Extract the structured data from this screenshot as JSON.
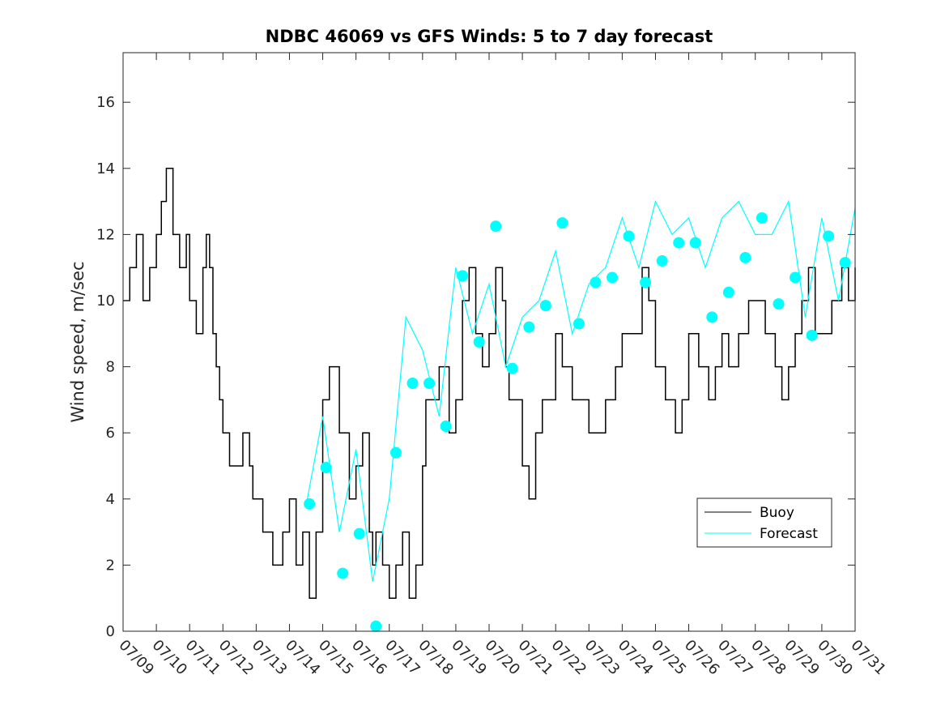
{
  "chart_data": {
    "type": "line",
    "title": "NDBC 46069 vs GFS Winds: 5 to 7 day forecast",
    "xlabel": "",
    "ylabel": "Wind speed, m/sec",
    "xlim": [
      0,
      22
    ],
    "ylim": [
      0,
      17.5
    ],
    "x_tick_labels": [
      "07/09",
      "07/10",
      "07/11",
      "07/12",
      "07/13",
      "07/14",
      "07/15",
      "07/16",
      "07/17",
      "07/18",
      "07/19",
      "07/20",
      "07/21",
      "07/22",
      "07/23",
      "07/24",
      "07/25",
      "07/26",
      "07/27",
      "07/28",
      "07/29",
      "07/30",
      "07/31"
    ],
    "y_ticks": [
      0,
      2,
      4,
      6,
      8,
      10,
      12,
      14,
      16
    ],
    "grid": false,
    "legend": {
      "position": "bottom-right",
      "entries": [
        "Buoy",
        "Forecast"
      ]
    },
    "colors": {
      "buoy": "#000000",
      "forecast": "#00ffff"
    },
    "series": [
      {
        "name": "Buoy",
        "x": [
          0,
          0.2,
          0.4,
          0.6,
          0.8,
          1.0,
          1.15,
          1.3,
          1.5,
          1.7,
          1.9,
          2.0,
          2.2,
          2.4,
          2.5,
          2.6,
          2.7,
          2.8,
          2.9,
          3.0,
          3.2,
          3.4,
          3.6,
          3.8,
          3.9,
          4.0,
          4.2,
          4.5,
          4.8,
          5.0,
          5.2,
          5.4,
          5.6,
          5.8,
          6.0,
          6.2,
          6.5,
          6.8,
          7.0,
          7.2,
          7.4,
          7.5,
          7.6,
          7.8,
          8.0,
          8.2,
          8.4,
          8.6,
          8.8,
          9.0,
          9.1,
          9.3,
          9.5,
          9.8,
          10.0,
          10.2,
          10.4,
          10.6,
          10.8,
          11.0,
          11.2,
          11.4,
          11.5,
          11.6,
          11.8,
          12.0,
          12.2,
          12.4,
          12.6,
          12.8,
          13.0,
          13.2,
          13.5,
          13.8,
          14.0,
          14.2,
          14.5,
          14.8,
          15.0,
          15.3,
          15.6,
          15.8,
          16.0,
          16.3,
          16.6,
          16.8,
          17.0,
          17.3,
          17.6,
          17.8,
          18.0,
          18.2,
          18.5,
          18.8,
          19.0,
          19.3,
          19.6,
          19.8,
          20.0,
          20.2,
          20.4,
          20.6,
          20.8,
          21.0,
          21.3,
          21.6,
          21.8,
          22.0
        ],
        "y": [
          10,
          11,
          12,
          10,
          11,
          12,
          13,
          14,
          12,
          11,
          12,
          10,
          9,
          11,
          12,
          11,
          9,
          8,
          7,
          6,
          5,
          5,
          6,
          5,
          4,
          4,
          3,
          2,
          3,
          4,
          2,
          3,
          1,
          3,
          7,
          8,
          6,
          4,
          5,
          6,
          3,
          2,
          3,
          2,
          1,
          2,
          3,
          1,
          2,
          5,
          7,
          7,
          8,
          6,
          7,
          10,
          11,
          9,
          8,
          9,
          11,
          10,
          8,
          7,
          7,
          5,
          4,
          6,
          7,
          7,
          9,
          8,
          7,
          7,
          6,
          6,
          7,
          8,
          9,
          9,
          11,
          10,
          8,
          7,
          6,
          7,
          9,
          8,
          7,
          8,
          9,
          8,
          9,
          10,
          10,
          9,
          8,
          7,
          8,
          9,
          10,
          11,
          9,
          9,
          10,
          11,
          10,
          11
        ]
      },
      {
        "name": "Forecast",
        "x": [
          5.5,
          6.0,
          6.5,
          7.0,
          7.5,
          8.0,
          8.5,
          9.0,
          9.5,
          10.0,
          10.5,
          11.0,
          11.5,
          12.0,
          12.5,
          13.0,
          13.5,
          14.0,
          14.5,
          15.0,
          15.5,
          16.0,
          16.5,
          17.0,
          17.5,
          18.0,
          18.5,
          19.0,
          19.5,
          20.0,
          20.5,
          21.0,
          21.5,
          22.0
        ],
        "y": [
          3.8,
          6.5,
          3.0,
          5.5,
          1.5,
          4.0,
          9.5,
          8.5,
          6.5,
          11.0,
          9.0,
          10.5,
          8.0,
          9.5,
          10.0,
          11.5,
          9.0,
          10.5,
          11.0,
          12.5,
          11.0,
          13.0,
          12.0,
          12.5,
          11.0,
          12.5,
          13.0,
          12.0,
          12.0,
          13.0,
          9.5,
          12.5,
          10.0,
          12.8
        ]
      }
    ],
    "forecast_markers": {
      "x": [
        5.6,
        6.1,
        6.6,
        7.1,
        7.6,
        8.2,
        8.7,
        9.2,
        9.7,
        10.2,
        10.7,
        11.2,
        11.7,
        12.2,
        12.7,
        13.2,
        13.7,
        14.2,
        14.7,
        15.2,
        15.7,
        16.2,
        16.7,
        17.2,
        17.7,
        18.2,
        18.7,
        19.2,
        19.7,
        20.2,
        20.7,
        21.2,
        21.7
      ],
      "y": [
        3.85,
        4.95,
        1.75,
        2.95,
        0.15,
        5.4,
        7.5,
        7.5,
        6.2,
        10.75,
        8.75,
        12.25,
        7.95,
        9.2,
        9.85,
        12.35,
        9.3,
        10.55,
        10.7,
        11.95,
        10.55,
        11.2,
        11.75,
        11.75,
        9.5,
        10.25,
        11.3,
        12.5,
        9.9,
        10.7,
        8.95,
        11.95,
        11.15
      ]
    }
  }
}
